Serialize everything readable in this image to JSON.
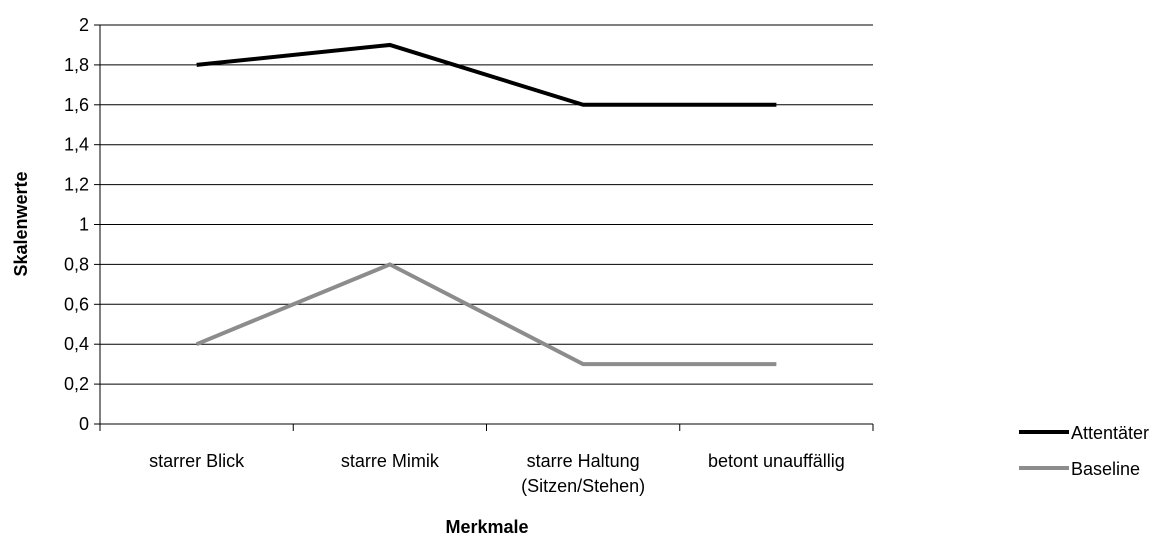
{
  "chart_data": {
    "type": "line",
    "xlabel": "Merkmale",
    "ylabel": "Skalenwerte",
    "categories": [
      [
        "starrer Blick"
      ],
      [
        "starre Mimik"
      ],
      [
        "starre Haltung",
        "(Sitzen/Stehen)"
      ],
      [
        "betont unauffällig"
      ]
    ],
    "ylim": [
      0,
      2
    ],
    "ytick_step": 0.2,
    "ytick_labels": [
      "0",
      "0,2",
      "0,4",
      "0,6",
      "0,8",
      "1",
      "1,2",
      "1,4",
      "1,6",
      "1,8",
      "2"
    ],
    "grid": true,
    "legend_position": "right",
    "series": [
      {
        "name": "Attentäter",
        "values": [
          1.8,
          1.9,
          1.6,
          1.6
        ],
        "color": "#000000"
      },
      {
        "name": "Baseline",
        "values": [
          0.4,
          0.8,
          0.3,
          0.3
        ],
        "color": "#8c8c8c"
      }
    ]
  }
}
